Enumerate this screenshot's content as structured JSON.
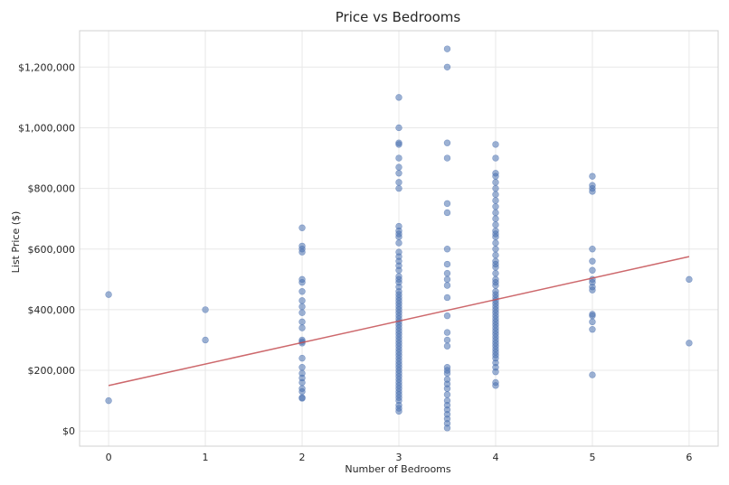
{
  "chart_data": {
    "type": "scatter",
    "title": "Price vs Bedrooms",
    "xlabel": "Number of Bedrooms",
    "ylabel": "List Price ($)",
    "xlim": [
      -0.3,
      6.3
    ],
    "ylim": [
      -50000,
      1320000
    ],
    "x_ticks": [
      0,
      1,
      2,
      3,
      4,
      5,
      6
    ],
    "y_ticks": [
      0,
      200000,
      400000,
      600000,
      800000,
      1000000,
      1200000
    ],
    "y_tick_labels": [
      "$0",
      "$200,000",
      "$400,000",
      "$600,000",
      "$800,000",
      "$1,000,000",
      "$1,200,000"
    ],
    "grid": true,
    "colors": {
      "points": "#4c72b0",
      "trend": "#c44e52"
    },
    "trend_line": {
      "x": [
        0,
        6
      ],
      "y": [
        150000,
        575000
      ]
    },
    "series": [
      {
        "x": 0,
        "y": [
          450000,
          100000
        ]
      },
      {
        "x": 1,
        "y": [
          400000,
          300000
        ]
      },
      {
        "x": 2,
        "y": [
          670000,
          610000,
          600000,
          590000,
          500000,
          490000,
          460000,
          430000,
          410000,
          390000,
          360000,
          340000,
          300000,
          295000,
          290000,
          240000,
          210000,
          190000,
          175000,
          160000,
          140000,
          130000,
          110000,
          108000
        ]
      },
      {
        "x": 3,
        "y": [
          1100000,
          1000000,
          950000,
          945000,
          900000,
          870000,
          850000,
          820000,
          800000,
          675000,
          660000,
          650000,
          640000,
          620000,
          590000,
          575000,
          560000,
          545000,
          530000,
          510000,
          500000,
          490000,
          475000,
          460000,
          450000,
          440000,
          430000,
          420000,
          410000,
          400000,
          390000,
          380000,
          370000,
          360000,
          350000,
          340000,
          330000,
          320000,
          310000,
          300000,
          290000,
          280000,
          270000,
          260000,
          250000,
          240000,
          230000,
          220000,
          210000,
          200000,
          190000,
          180000,
          170000,
          160000,
          150000,
          140000,
          130000,
          120000,
          110000,
          100000,
          85000,
          75000,
          65000
        ]
      },
      {
        "x": 3.5,
        "y": [
          1260000,
          1200000,
          950000,
          900000,
          750000,
          720000,
          600000,
          550000,
          520000,
          500000,
          480000,
          440000,
          380000,
          325000,
          300000,
          280000,
          210000,
          200000,
          190000,
          170000,
          155000,
          140000,
          120000,
          100000,
          85000,
          70000,
          55000,
          40000,
          25000,
          10000
        ]
      },
      {
        "x": 4,
        "y": [
          945000,
          900000,
          850000,
          840000,
          820000,
          800000,
          780000,
          760000,
          740000,
          720000,
          700000,
          680000,
          660000,
          650000,
          640000,
          620000,
          600000,
          580000,
          560000,
          550000,
          540000,
          520000,
          500000,
          490000,
          480000,
          460000,
          450000,
          440000,
          430000,
          420000,
          410000,
          400000,
          390000,
          380000,
          370000,
          360000,
          350000,
          340000,
          330000,
          320000,
          310000,
          300000,
          290000,
          280000,
          270000,
          260000,
          250000,
          240000,
          225000,
          210000,
          195000,
          160000,
          150000
        ]
      },
      {
        "x": 5,
        "y": [
          840000,
          810000,
          800000,
          790000,
          600000,
          560000,
          530000,
          500000,
          490000,
          475000,
          465000,
          385000,
          380000,
          360000,
          335000,
          185000
        ]
      },
      {
        "x": 6,
        "y": [
          500000,
          290000
        ]
      }
    ]
  }
}
